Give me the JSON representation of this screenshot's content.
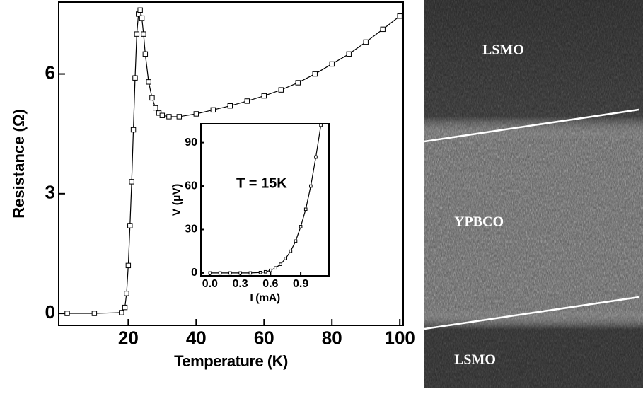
{
  "chart_data": [
    {
      "type": "line",
      "x_label": "Temperature (K)",
      "y_label": "Resistance (Ω)",
      "x": [
        2,
        10,
        18,
        19,
        19.5,
        20,
        20.5,
        21,
        21.5,
        22,
        22.5,
        23,
        23.5,
        24,
        24.5,
        25,
        26,
        27,
        28,
        29,
        30,
        32,
        35,
        40,
        45,
        50,
        55,
        60,
        65,
        70,
        75,
        80,
        85,
        90,
        95,
        100
      ],
      "values": [
        0,
        0,
        0.02,
        0.15,
        0.5,
        1.2,
        2.2,
        3.3,
        4.6,
        5.9,
        7.0,
        7.5,
        7.6,
        7.4,
        7.0,
        6.5,
        5.8,
        5.4,
        5.15,
        5.02,
        4.96,
        4.93,
        4.93,
        5.0,
        5.1,
        5.2,
        5.32,
        5.45,
        5.6,
        5.78,
        6.0,
        6.25,
        6.5,
        6.8,
        7.12,
        7.45
      ],
      "color": "#000000",
      "xlim": [
        -0.5,
        101
      ],
      "ylim": [
        -0.3,
        7.8
      ],
      "xticks": [
        20,
        40,
        60,
        80,
        100
      ],
      "yticks": [
        0,
        3,
        6
      ]
    },
    {
      "type": "line",
      "x_label": "I (mA)",
      "y_label": "V (µV)",
      "annotation": "T = 15K",
      "x": [
        0,
        0.1,
        0.2,
        0.3,
        0.4,
        0.5,
        0.55,
        0.6,
        0.65,
        0.7,
        0.75,
        0.8,
        0.85,
        0.9,
        0.95,
        1.0,
        1.05,
        1.1
      ],
      "values": [
        0,
        0,
        0,
        0,
        0,
        0.3,
        0.8,
        1.8,
        3.5,
        6,
        10,
        15,
        22,
        32,
        44,
        60,
        80,
        102
      ],
      "color": "#000000",
      "xlim": [
        -0.09,
        1.18
      ],
      "ylim": [
        -2,
        103
      ],
      "xticks": [
        {
          "value": 0,
          "label": "0.0"
        },
        {
          "value": 0.3,
          "label": "0.3"
        },
        {
          "value": 0.6,
          "label": "0.6"
        },
        {
          "value": 0.9,
          "label": "0.9"
        }
      ],
      "yticks": [
        0,
        30,
        60,
        90
      ]
    }
  ],
  "image": {
    "labels": [
      "LSMO",
      "YPBCO",
      "LSMO"
    ]
  }
}
